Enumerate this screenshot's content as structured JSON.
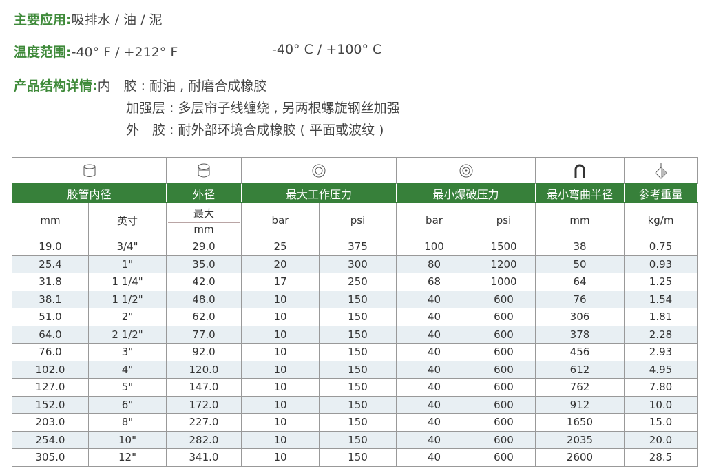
{
  "info": {
    "application": {
      "label": "主要应用:",
      "value": "吸排水 / 油 / 泥"
    },
    "temperature": {
      "label": "温度范围:",
      "value_f": "-40° F / +212° F",
      "value_c": "-40° C / +100° C"
    },
    "structure": {
      "label": "产品结构详情:",
      "inner": "内　胶 : 耐油 , 耐磨合成橡胶",
      "reinforcement": "加强层 : 多层帘子线缠绕 , 另两根螺旋钢丝加强",
      "outer": "外　胶 : 耐外部环境合成橡胶 ( 平面或波纹 )"
    }
  },
  "table": {
    "icons": [
      "hose-inner-icon",
      "hose-outer-icon",
      "pressure-gauge-icon",
      "burst-gauge-icon",
      "bend-radius-icon",
      "weight-icon"
    ],
    "headers": [
      "胶管内径",
      "外径",
      "最大工作压力",
      "最小爆破压力",
      "最小弯曲半径",
      "参考重量"
    ],
    "units": [
      "mm",
      "英寸",
      "最大",
      "mm",
      "bar",
      "psi",
      "bar",
      "psi",
      "mm",
      "kg/m"
    ],
    "rows": [
      [
        "19.0",
        "3/4\"",
        "29.0",
        "25",
        "375",
        "100",
        "1500",
        "38",
        "0.75"
      ],
      [
        "25.4",
        "1\"",
        "35.0",
        "20",
        "300",
        "80",
        "1200",
        "50",
        "0.93"
      ],
      [
        "31.8",
        "1 1/4\"",
        "42.0",
        "17",
        "250",
        "68",
        "1000",
        "64",
        "1.25"
      ],
      [
        "38.1",
        "1 1/2\"",
        "48.0",
        "10",
        "150",
        "40",
        "600",
        "76",
        "1.54"
      ],
      [
        "51.0",
        "2\"",
        "62.0",
        "10",
        "150",
        "40",
        "600",
        "306",
        "1.81"
      ],
      [
        "64.0",
        "2 1/2\"",
        "77.0",
        "10",
        "150",
        "40",
        "600",
        "378",
        "2.28"
      ],
      [
        "76.0",
        "3\"",
        "92.0",
        "10",
        "150",
        "40",
        "600",
        "456",
        "2.93"
      ],
      [
        "102.0",
        "4\"",
        "120.0",
        "10",
        "150",
        "40",
        "600",
        "612",
        "4.95"
      ],
      [
        "127.0",
        "5\"",
        "147.0",
        "10",
        "150",
        "40",
        "600",
        "762",
        "7.80"
      ],
      [
        "152.0",
        "6\"",
        "172.0",
        "10",
        "150",
        "40",
        "600",
        "912",
        "10.0"
      ],
      [
        "203.0",
        "8\"",
        "227.0",
        "10",
        "150",
        "40",
        "600",
        "1650",
        "15.0"
      ],
      [
        "254.0",
        "10\"",
        "282.0",
        "10",
        "150",
        "40",
        "600",
        "2035",
        "20.0"
      ],
      [
        "305.0",
        "12\"",
        "341.0",
        "10",
        "150",
        "40",
        "600",
        "2600",
        "28.5"
      ]
    ]
  },
  "colors": {
    "header_green": "#37803a",
    "label_green": "#3f8a3a",
    "row_shade": "#e8eff3"
  }
}
